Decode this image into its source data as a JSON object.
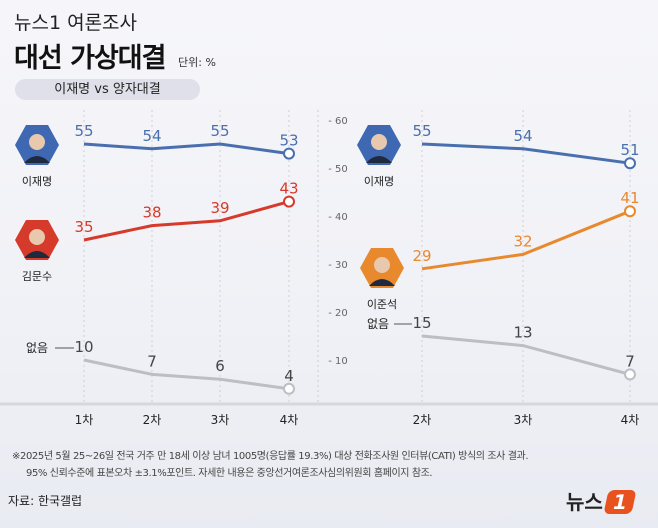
{
  "header": {
    "supertitle": "뉴스1 여론조사",
    "title": "대선 가상대결",
    "unit": "단위: %",
    "subtitle_pill": "이재명 vs 양자대결"
  },
  "chart_data": [
    {
      "type": "line",
      "categories": [
        "1차",
        "2차",
        "3차",
        "4차"
      ],
      "ylim": [
        0,
        60
      ],
      "series": [
        {
          "name": "이재명",
          "color": "#4a6fae",
          "values": [
            55,
            54,
            55,
            53
          ]
        },
        {
          "name": "김문수",
          "color": "#d63a2a",
          "values": [
            35,
            38,
            39,
            43
          ]
        },
        {
          "name": "없음",
          "color": "#bdbdc2",
          "values": [
            10,
            7,
            6,
            4
          ]
        }
      ]
    },
    {
      "type": "line",
      "categories": [
        "2차",
        "3차",
        "4차"
      ],
      "ylim": [
        0,
        60
      ],
      "yticks": [
        10,
        20,
        30,
        40,
        50,
        60
      ],
      "series": [
        {
          "name": "이재명",
          "color": "#4a6fae",
          "values": [
            55,
            54,
            51
          ]
        },
        {
          "name": "이준석",
          "color": "#e8892e",
          "values": [
            29,
            32,
            41
          ]
        },
        {
          "name": "없음",
          "color": "#bdbdc2",
          "values": [
            15,
            13,
            7
          ]
        }
      ]
    }
  ],
  "footer": {
    "note_line1": "※2025년 5월 25~26일 전국 거주 만 18세 이상 남녀 1005명(응답률 19.3%) 대상 전화조사원 인터뷰(CATI) 방식의 조사 결과.",
    "note_line2": "95% 신뢰수준에 표본오차 ±3.1%포인트. 자세한 내용은 중앙선거여론조사심의위원회 홈페이지 참조.",
    "source": "자료: 한국갤럽",
    "logo": "뉴스1"
  }
}
